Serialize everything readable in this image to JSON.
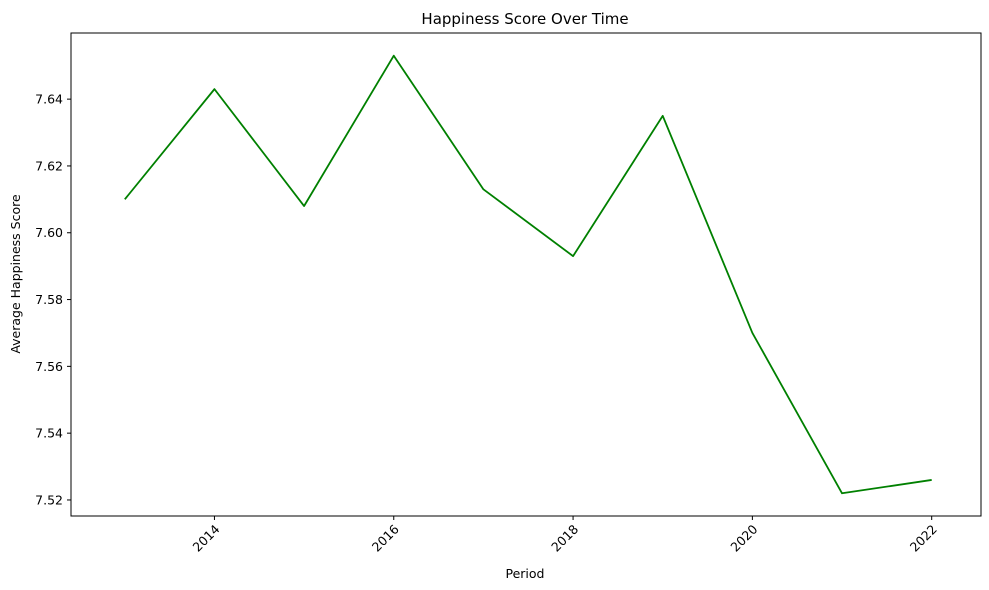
{
  "chart_data": {
    "type": "line",
    "title": "Happiness Score Over Time",
    "xlabel": "Period",
    "ylabel": "Average Happiness Score",
    "xlim": [
      2012.4,
      2022.55
    ],
    "ylim": [
      7.5152,
      7.6598
    ],
    "x_ticks": [
      2014,
      2016,
      2018,
      2020,
      2022
    ],
    "y_ticks": [
      7.52,
      7.54,
      7.56,
      7.58,
      7.6,
      7.62,
      7.64
    ],
    "y_tick_labels": [
      "7.52",
      "7.54",
      "7.56",
      "7.58",
      "7.60",
      "7.62",
      "7.64"
    ],
    "x_tick_rotation_deg": 45,
    "grid": false,
    "series": [
      {
        "color": "#008000",
        "x": [
          2013,
          2014,
          2015,
          2016,
          2017,
          2018,
          2019,
          2020,
          2021,
          2022
        ],
        "y": [
          7.61,
          7.643,
          7.608,
          7.653,
          7.613,
          7.593,
          7.635,
          7.57,
          7.522,
          7.526
        ]
      }
    ]
  }
}
